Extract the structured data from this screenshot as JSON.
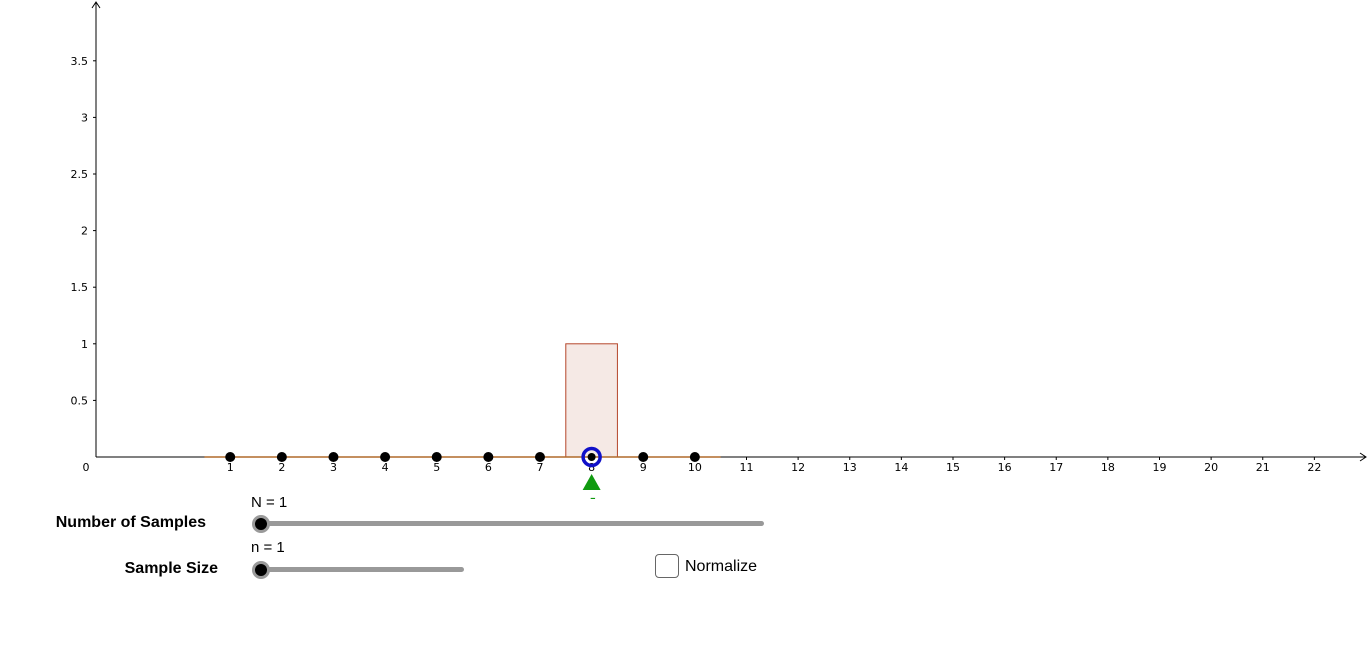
{
  "chart_data": {
    "type": "bar",
    "x_ticks": [
      "1",
      "2",
      "3",
      "4",
      "5",
      "6",
      "7",
      "8",
      "9",
      "10",
      "11",
      "12",
      "13",
      "14",
      "15",
      "16",
      "17",
      "18",
      "19",
      "20",
      "21",
      "22"
    ],
    "y_ticks": [
      "0.5",
      "1",
      "1.5",
      "2",
      "2.5",
      "3",
      "3.5"
    ],
    "origin_label": "0",
    "xlim": [
      -1.6,
      23.0
    ],
    "ylim": [
      0,
      4.0
    ],
    "bars": [
      {
        "x": 8,
        "width": 1,
        "value": 1
      }
    ],
    "sample_points": [
      1,
      2,
      3,
      4,
      5,
      6,
      7,
      9,
      10
    ],
    "current_point": 8,
    "mean_marker": {
      "x": 8,
      "label": "x̄"
    },
    "baseline_range": [
      0.5,
      10.5
    ],
    "colors": {
      "bar_fill": "#f5e9e5",
      "bar_stroke": "#b5462a",
      "baseline": "#b06a2a",
      "point": "#000000",
      "current_ring": "#1010c8",
      "mean": "#109a10"
    }
  },
  "controls": {
    "number_of_samples": {
      "title": "Number of Samples",
      "value_text": "N = 1",
      "value": 1,
      "position": 0
    },
    "sample_size": {
      "title": "Sample Size",
      "value_text": "n = 1",
      "value": 1,
      "position": 0
    },
    "normalize": {
      "label": "Normalize",
      "checked": false
    }
  }
}
